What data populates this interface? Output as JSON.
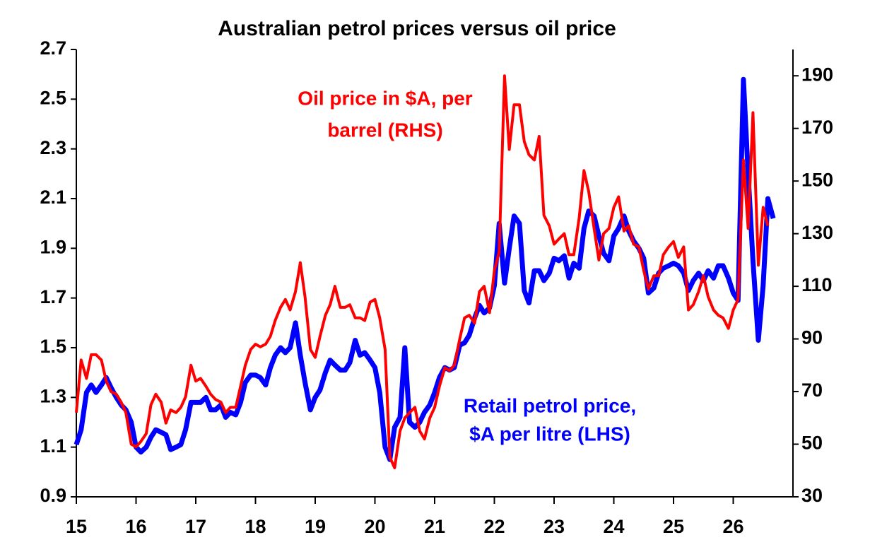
{
  "chart_data": {
    "type": "line",
    "title": "Australian petrol prices versus oil price",
    "annotations": [
      {
        "text": "Oil price in $A, per",
        "color": "#ff0000"
      },
      {
        "text": "barrel (RHS)",
        "color": "#ff0000"
      },
      {
        "text": "Retail petrol price,",
        "color": "#0000ff"
      },
      {
        "text": "$A per litre (LHS)",
        "color": "#0000ff"
      }
    ],
    "x": [
      15,
      15.08,
      15.17,
      15.25,
      15.33,
      15.42,
      15.5,
      15.58,
      15.67,
      15.75,
      15.83,
      15.92,
      16,
      16.08,
      16.17,
      16.25,
      16.33,
      16.42,
      16.5,
      16.58,
      16.67,
      16.75,
      16.83,
      16.92,
      17,
      17.08,
      17.17,
      17.25,
      17.33,
      17.42,
      17.5,
      17.58,
      17.67,
      17.75,
      17.83,
      17.92,
      18,
      18.08,
      18.17,
      18.25,
      18.33,
      18.42,
      18.5,
      18.58,
      18.67,
      18.75,
      18.83,
      18.92,
      19,
      19.08,
      19.17,
      19.25,
      19.33,
      19.42,
      19.5,
      19.58,
      19.67,
      19.75,
      19.83,
      19.92,
      20,
      20.08,
      20.17,
      20.25,
      20.33,
      20.42,
      20.5,
      20.58,
      20.67,
      20.75,
      20.83,
      20.92,
      21,
      21.08,
      21.17,
      21.25,
      21.33,
      21.42,
      21.5,
      21.58,
      21.67,
      21.75,
      21.83,
      21.92,
      22,
      22.08,
      22.17,
      22.25,
      22.33,
      22.42,
      22.5,
      22.58,
      22.67,
      22.75,
      22.83,
      22.92,
      23,
      23.08,
      23.17,
      23.25,
      23.33,
      23.42,
      23.5,
      23.58,
      23.67,
      23.75,
      23.83,
      23.92,
      24,
      24.08,
      24.17,
      24.25,
      24.33,
      24.42,
      24.5,
      24.58,
      24.67,
      24.75,
      24.83,
      24.92,
      25,
      25.08,
      25.17,
      25.25,
      25.33,
      25.42,
      25.5,
      25.58,
      25.67,
      25.75,
      25.83,
      25.92,
      26,
      26.08,
      26.17,
      26.25,
      26.33,
      26.42,
      26.5,
      26.58,
      26.67
    ],
    "series": [
      {
        "name": "Retail petrol price, $A per litre (LHS)",
        "color": "#0000ff",
        "axis": "y",
        "values": [
          1.11,
          1.17,
          1.32,
          1.35,
          1.32,
          1.35,
          1.38,
          1.34,
          1.3,
          1.27,
          1.25,
          1.2,
          1.1,
          1.08,
          1.1,
          1.14,
          1.17,
          1.16,
          1.15,
          1.09,
          1.1,
          1.11,
          1.17,
          1.28,
          1.28,
          1.28,
          1.3,
          1.25,
          1.25,
          1.27,
          1.22,
          1.24,
          1.23,
          1.28,
          1.36,
          1.39,
          1.39,
          1.38,
          1.35,
          1.42,
          1.47,
          1.5,
          1.48,
          1.5,
          1.6,
          1.47,
          1.36,
          1.25,
          1.3,
          1.33,
          1.4,
          1.45,
          1.43,
          1.41,
          1.41,
          1.44,
          1.53,
          1.47,
          1.48,
          1.45,
          1.42,
          1.32,
          1.1,
          1.05,
          1.18,
          1.22,
          1.5,
          1.2,
          1.18,
          1.2,
          1.24,
          1.27,
          1.32,
          1.38,
          1.42,
          1.41,
          1.42,
          1.51,
          1.52,
          1.55,
          1.62,
          1.67,
          1.64,
          1.66,
          1.75,
          2.0,
          1.76,
          1.9,
          2.03,
          2.0,
          1.73,
          1.68,
          1.81,
          1.81,
          1.77,
          1.8,
          1.86,
          1.85,
          1.87,
          1.78,
          1.84,
          1.82,
          1.98,
          2.05,
          2.03,
          1.95,
          1.88,
          1.85,
          1.95,
          1.98,
          2.03,
          1.97,
          1.93,
          1.9,
          1.86,
          1.72,
          1.74,
          1.8,
          1.82,
          1.83,
          1.84,
          1.83,
          1.8,
          1.73,
          1.77,
          1.8,
          1.77,
          1.81,
          1.78,
          1.83,
          1.83,
          1.78,
          1.72,
          1.69,
          2.58,
          2.2,
          1.85,
          1.53,
          1.75,
          2.1,
          2.02
        ]
      },
      {
        "name": "Oil price in $A, per barrel (RHS)",
        "color": "#ff0000",
        "axis": "y2",
        "values": [
          62,
          82,
          75,
          84,
          84,
          82,
          74,
          70,
          69,
          66,
          62,
          50,
          49,
          51,
          54,
          65,
          69,
          66,
          58,
          63,
          62,
          64,
          68,
          80,
          74,
          75,
          72,
          69,
          67,
          66,
          62,
          64,
          64,
          72,
          80,
          86,
          88,
          87,
          88,
          91,
          97,
          102,
          105,
          101,
          108,
          119,
          106,
          86,
          83,
          91,
          99,
          103,
          110,
          102,
          102,
          103,
          98,
          98,
          97,
          104,
          105,
          98,
          86,
          45,
          41,
          55,
          60,
          62,
          64,
          55,
          52,
          60,
          64,
          72,
          79,
          78,
          80,
          90,
          98,
          99,
          96,
          108,
          110,
          100,
          116,
          123,
          190,
          162,
          179,
          179,
          165,
          160,
          158,
          167,
          137,
          133,
          126,
          128,
          130,
          122,
          122,
          136,
          154,
          146,
          132,
          120,
          130,
          132,
          140,
          144,
          131,
          133,
          126,
          125,
          116,
          109,
          114,
          114,
          122,
          125,
          127,
          121,
          125,
          101,
          103,
          108,
          114,
          106,
          101,
          99,
          98,
          94,
          101,
          105,
          158,
          132,
          176,
          118,
          140,
          133,
          null
        ]
      }
    ],
    "xlim": [
      15,
      27
    ],
    "xticks": [
      15,
      16,
      17,
      18,
      19,
      20,
      21,
      22,
      23,
      24,
      25,
      26
    ],
    "ylim": [
      0.9,
      2.7
    ],
    "yticks": [
      0.9,
      1.1,
      1.3,
      1.5,
      1.7,
      1.9,
      2.1,
      2.3,
      2.5,
      2.7
    ],
    "y2lim": [
      30,
      200
    ],
    "y2ticks": [
      30,
      50,
      70,
      90,
      110,
      130,
      150,
      170,
      190
    ]
  }
}
